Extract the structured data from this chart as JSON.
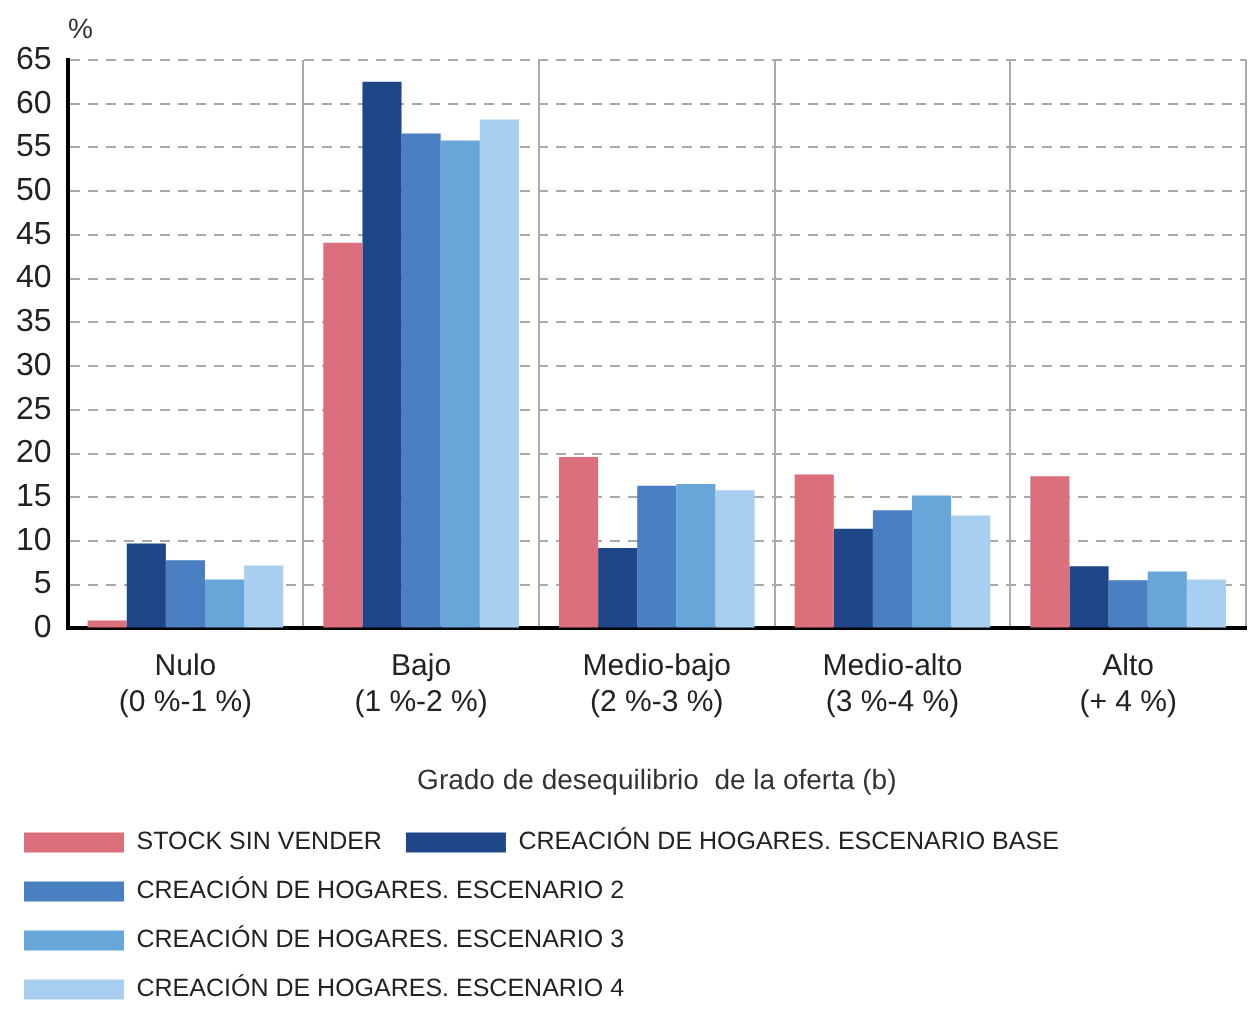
{
  "chart_data": {
    "type": "bar",
    "ylabel": "%",
    "xlabel": "Grado de desequilibrio  de la oferta (b)",
    "categories": [
      "Nulo\n(0 %-1 %)",
      "Bajo\n(1 %-2 %)",
      "Medio-bajo\n(2 %-3 %)",
      "Medio-alto\n(3 %-4 %)",
      "Alto\n(+ 4 %)"
    ],
    "series": [
      {
        "name": "STOCK SIN VENDER",
        "color": "#db6f7c",
        "values": [
          0.9,
          44.1,
          19.6,
          17.6,
          17.4
        ]
      },
      {
        "name": "CREACIÓN DE HOGARES. ESCENARIO BASE",
        "color": "#1f4788",
        "values": [
          9.7,
          62.5,
          9.2,
          11.4,
          7.1
        ]
      },
      {
        "name": "CREACIÓN DE HOGARES. ESCENARIO 2",
        "color": "#4a7fc1",
        "values": [
          7.8,
          56.6,
          16.3,
          13.5,
          5.5
        ]
      },
      {
        "name": "CREACIÓN DE HOGARES. ESCENARIO 3",
        "color": "#68a6da",
        "values": [
          5.6,
          55.8,
          16.5,
          15.2,
          6.5
        ]
      },
      {
        "name": "CREACIÓN DE HOGARES. ESCENARIO 4",
        "color": "#a8cff0",
        "values": [
          7.2,
          58.2,
          15.8,
          12.9,
          5.6
        ]
      }
    ],
    "ylim": [
      0,
      65
    ],
    "yticks": [
      0,
      5,
      10,
      15,
      20,
      25,
      30,
      35,
      40,
      45,
      50,
      55,
      60,
      65
    ],
    "grid": true,
    "legend": "bottom"
  }
}
